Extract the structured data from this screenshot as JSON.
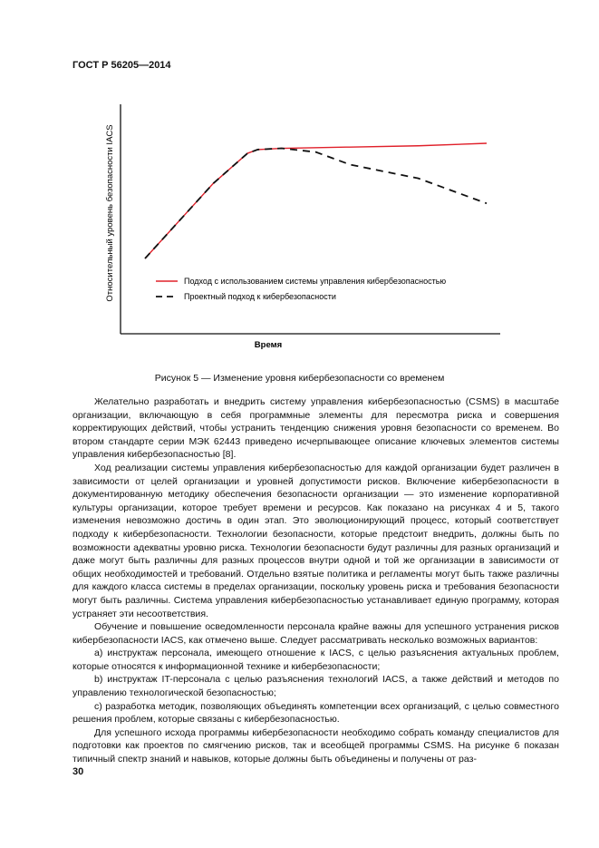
{
  "header": "ГОСТ Р 56205—2014",
  "page_number": "30",
  "figure": {
    "caption": "Рисунок 5 — Изменение уровня кибербезопасности со временем",
    "chart_data": {
      "type": "line",
      "xlabel": "Время",
      "ylabel": "Относительный уровень безопасности IACS",
      "grid": false,
      "legend_placement": "center-right",
      "series": [
        {
          "name": "Подход с использованием системы управления кибербезопасностью",
          "color": "#e0202a",
          "style": "solid",
          "x": [
            0,
            10,
            20,
            30,
            33,
            40,
            60,
            80,
            100
          ],
          "y": [
            0,
            30,
            60,
            84,
            87,
            88,
            89,
            90,
            92
          ]
        },
        {
          "name": "Проектный подход к кибербезопасности",
          "color": "#111111",
          "style": "dashed",
          "x": [
            0,
            10,
            20,
            30,
            33,
            40,
            50,
            60,
            80,
            100
          ],
          "y": [
            0,
            30,
            60,
            84,
            87,
            88,
            85,
            75,
            64,
            44
          ]
        }
      ]
    }
  },
  "paragraphs": [
    "Желательно разработать и внедрить систему управления кибербезопасностью (CSMS) в масштабе организации, включающую в себя программные элементы для пересмотра риска и совершения корректирующих действий, чтобы устранить тенденцию снижения уровня безопасности со временем. Во втором стандарте серии МЭК 62443 приведено исчерпывающее описание ключевых элементов системы управления кибербезопасностью [8].",
    "Ход реализации системы управления кибербезопасностью для каждой организации будет различен в зависимости от целей организации и уровней допустимости рисков. Включение кибербезопасности в документированную методику обеспечения безопасности организации — это изменение корпоративной культуры организации, которое требует времени и ресурсов. Как показано на рисунках 4 и 5, такого изменения невозможно достичь в один этап. Это эволюционирующий процесс, который соответствует подходу к кибербезопасности. Технологии безопасности, которые предстоит внедрить, должны быть по возможности адекватны уровню риска. Технологии безопасности будут различны для разных организаций и даже могут быть различны для разных процессов внутри одной и той же организации в зависимости от общих необходимостей и требований. Отдельно взятые политика и регламенты могут быть также различны для каждого класса системы в пределах организации, поскольку уровень риска и требования безопасности могут быть различны. Система управления кибербезопасностью устанавливает единую программу, которая устраняет эти несоответствия.",
    "Обучение и повышение осведомленности персонала крайне важны для успешного устранения рисков кибербезопасности IACS, как отмечено выше. Следует рассматривать несколько возможных вариантов:",
    "a) инструктаж персонала, имеющего отношение к IACS, с целью разъяснения актуальных проблем, которые относятся к информационной технике и кибербезопасности;",
    "b) инструктаж IT-персонала с целью разъяснения технологий IACS, а также действий и методов по управлению технологической безопасностью;",
    "c) разработка методик, позволяющих объединять компетенции всех организаций, с целью совместного решения проблем, которые связаны с кибербезопасностью.",
    "Для успешного исхода программы кибербезопасности необходимо собрать команду специалистов для подготовки как проектов по смягчению рисков, так и всеобщей программы CSMS. На рисунке 6 показан типичный спектр знаний и навыков, которые должны быть объединены и получены от раз-"
  ]
}
